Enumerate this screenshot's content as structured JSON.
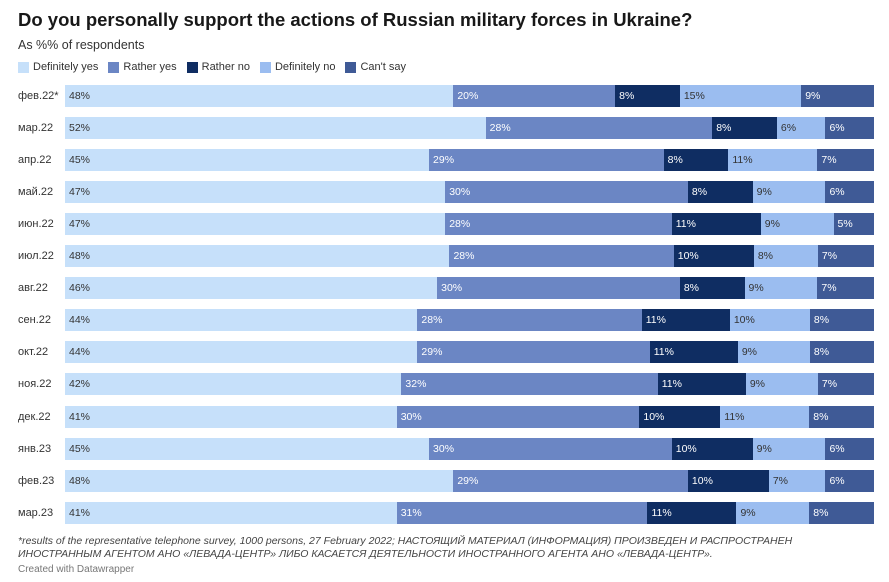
{
  "title": "Do you personally support the actions of Russian military forces in Ukraine?",
  "subtitle": "As %% of respondents",
  "notes": "*results of the representative telephone survey, 1000 persons, 27 February 2022; НАСТОЯЩИЙ МАТЕРИАЛ (ИНФОРМАЦИЯ) ПРОИЗВЕДЕН И РАСПРОСТРАНЕН ИНОСТРАННЫМ АГЕНТОМ АНО «ЛЕВАДА-ЦЕНТР» ЛИБО КАСАЕТСЯ ДЕЯТЕЛЬНОСТИ ИНОСТРАННОГО АГЕНТА АНО «ЛЕВАДА-ЦЕНТР».",
  "credit": "Created with Datawrapper",
  "colors": {
    "definitely_yes": "#c6e0fa",
    "rather_yes": "#6b86c4",
    "rather_no": "#0f2d62",
    "definitely_no": "#9bbdf0",
    "cant_say": "#3f5a96"
  },
  "chart_data": {
    "type": "bar",
    "orientation": "horizontal",
    "stacked": true,
    "xlim": [
      0,
      100
    ],
    "legend_position": "top-left",
    "categories": [
      "фев.22*",
      "мар.22",
      "апр.22",
      "май.22",
      "июн.22",
      "июл.22",
      "авг.22",
      "сен.22",
      "окт.22",
      "ноя.22",
      "дек.22",
      "янв.23",
      "фев.23",
      "мар.23"
    ],
    "series": [
      {
        "name": "Definitely yes",
        "color": "#c6e0fa",
        "label_color": "#333333",
        "values": [
          48,
          52,
          45,
          47,
          47,
          48,
          46,
          44,
          44,
          42,
          41,
          45,
          48,
          41
        ]
      },
      {
        "name": "Rather yes",
        "color": "#6b86c4",
        "label_color": "#ffffff",
        "values": [
          20,
          28,
          29,
          30,
          28,
          28,
          30,
          28,
          29,
          32,
          30,
          30,
          29,
          31
        ]
      },
      {
        "name": "Rather no",
        "color": "#0f2d62",
        "label_color": "#ffffff",
        "values": [
          8,
          8,
          8,
          8,
          11,
          10,
          8,
          11,
          11,
          11,
          10,
          10,
          10,
          11
        ]
      },
      {
        "name": "Definitely no",
        "color": "#9bbdf0",
        "label_color": "#333333",
        "values": [
          15,
          6,
          11,
          9,
          9,
          8,
          9,
          10,
          9,
          9,
          11,
          9,
          7,
          9
        ]
      },
      {
        "name": "Can't say",
        "color": "#3f5a96",
        "label_color": "#ffffff",
        "values": [
          9,
          6,
          7,
          6,
          5,
          7,
          7,
          8,
          8,
          7,
          8,
          6,
          6,
          8
        ]
      }
    ]
  }
}
